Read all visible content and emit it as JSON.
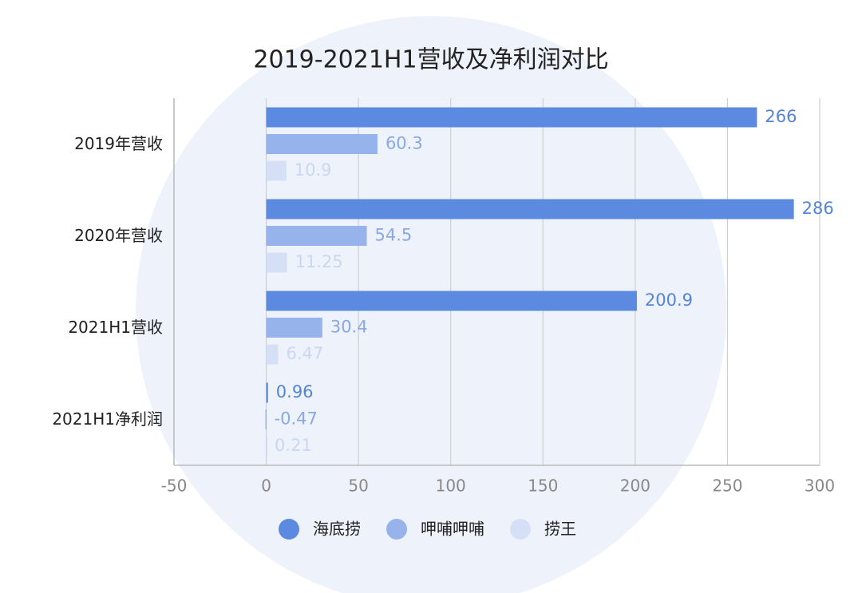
{
  "chart_data": {
    "type": "bar",
    "orientation": "horizontal",
    "title": "2019-2021H1营收及净利润对比",
    "categories": [
      "2019年营收",
      "2020年营收",
      "2021H1营收",
      "2021H1净利润"
    ],
    "series": [
      {
        "name": "海底捞",
        "color": "#5b8ae0",
        "label_color": "#5384d8",
        "values": [
          266,
          286,
          200.9,
          0.96
        ]
      },
      {
        "name": "呷哺呷哺",
        "color": "#97b3eb",
        "label_color": "#8aa8e6",
        "values": [
          60.3,
          54.5,
          30.4,
          -0.47
        ]
      },
      {
        "name": "捞王",
        "color": "#d5e0f7",
        "label_color": "#c9d7f3",
        "values": [
          10.9,
          11.25,
          6.47,
          0.21
        ]
      }
    ],
    "xlim": [
      -50,
      300
    ],
    "xticks": [
      -50,
      0,
      50,
      100,
      150,
      200,
      250,
      300
    ],
    "grid": true,
    "legend": "bottom"
  }
}
